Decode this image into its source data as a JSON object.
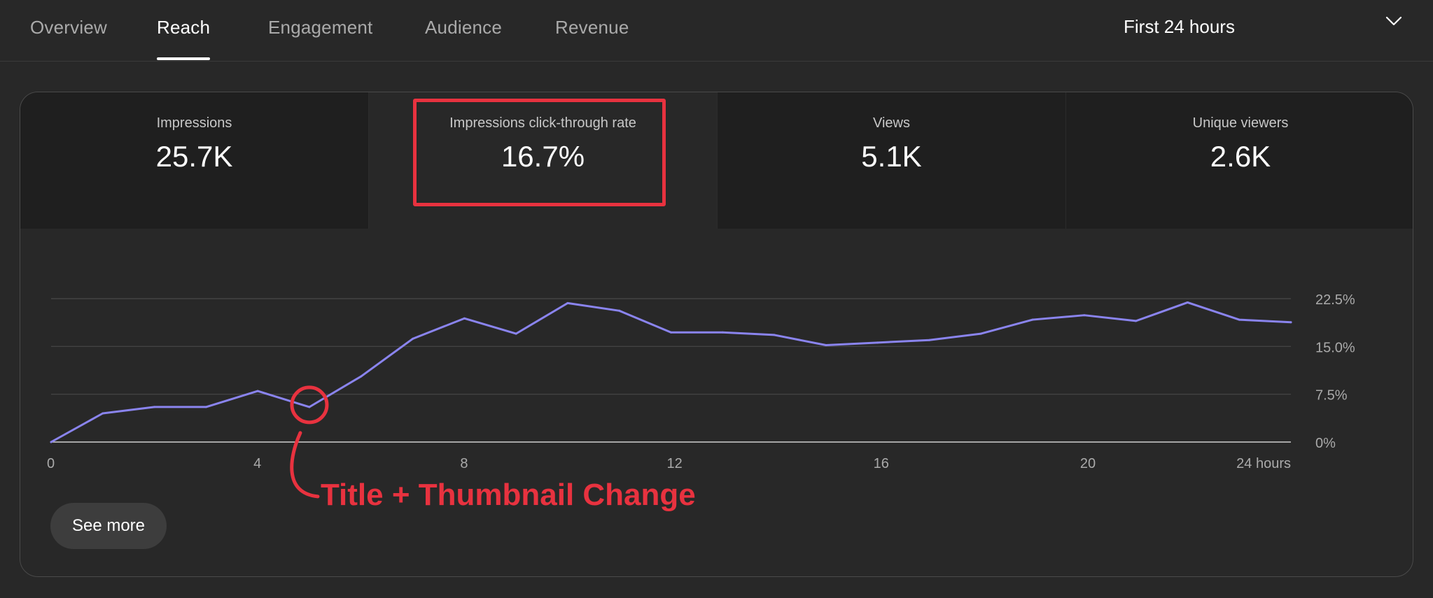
{
  "tabs": [
    {
      "label": "Overview",
      "active": false
    },
    {
      "label": "Reach",
      "active": true
    },
    {
      "label": "Engagement",
      "active": false
    },
    {
      "label": "Audience",
      "active": false
    },
    {
      "label": "Revenue",
      "active": false
    }
  ],
  "date_range": {
    "label": "First 24 hours",
    "icon": "chevron-down-icon"
  },
  "metrics": [
    {
      "label": "Impressions",
      "value": "25.7K",
      "selected": false
    },
    {
      "label": "Impressions click-through rate",
      "value": "16.7%",
      "selected": true
    },
    {
      "label": "Views",
      "value": "5.1K",
      "selected": false
    },
    {
      "label": "Unique viewers",
      "value": "2.6K",
      "selected": false
    }
  ],
  "see_more_label": "See more",
  "annotation": {
    "text": "Title + Thumbnail Change",
    "x": 5,
    "color": "#e8323f"
  },
  "colors": {
    "line": "#8a84ee",
    "highlight": "#e8323f",
    "background": "#282828",
    "metric_tile": "#1f1f1f"
  },
  "chart_data": {
    "type": "line",
    "x": [
      0,
      1,
      2,
      3,
      4,
      5,
      6,
      7,
      8,
      9,
      10,
      11,
      12,
      13,
      14,
      15,
      16,
      17,
      18,
      19,
      20,
      21,
      22,
      23,
      24
    ],
    "series": [
      {
        "values": [
          0,
          4.5,
          5.5,
          5.5,
          8.0,
          5.5,
          10.3,
          16.2,
          19.4,
          17.0,
          21.8,
          20.6,
          17.2,
          17.2,
          16.8,
          15.2,
          15.6,
          16.0,
          17.0,
          19.2,
          19.9,
          19.0,
          21.9,
          19.2,
          18.8
        ]
      }
    ],
    "xticks": [
      0,
      4,
      8,
      12,
      16,
      20,
      24
    ],
    "xtick_labels": [
      "0",
      "4",
      "8",
      "12",
      "16",
      "20",
      "24 hours"
    ],
    "yticks": [
      0,
      7.5,
      15,
      22.5
    ],
    "ytick_labels": [
      "0%",
      "7.5%",
      "15.0%",
      "22.5%"
    ],
    "xlim": [
      0,
      24
    ],
    "ylim": [
      0,
      22.5
    ],
    "grid": true
  }
}
